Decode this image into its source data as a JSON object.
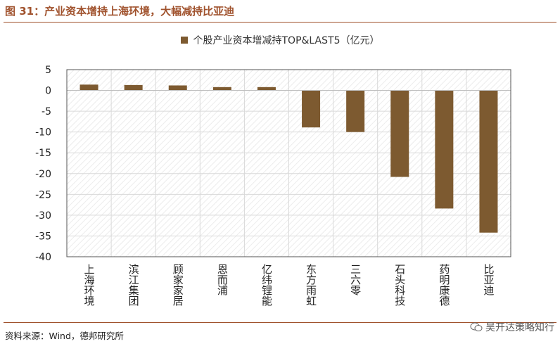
{
  "figure": {
    "title": "图 31：产业资本增持上海环境，大幅减持比亚迪",
    "source": "资料来源：Wind，德邦研究所",
    "watermark": "吴开达策略知行"
  },
  "colors": {
    "bar": "#7d5a30",
    "accent": "#a0522d",
    "grid": "#d9d9d9",
    "hatch": "#ececec"
  },
  "chart_data": {
    "type": "bar",
    "categories": [
      "上海环境",
      "滨江集团",
      "顾家家居",
      "恩而浦",
      "亿纬锂能",
      "东方雨虹",
      "三六零",
      "石头科技",
      "药明康德",
      "比亚迪"
    ],
    "series": [
      {
        "name": "个股产业资本增减持TOP&LAST5（亿元）",
        "values": [
          1.4,
          1.3,
          1.2,
          0.8,
          0.8,
          -8.9,
          -10.0,
          -20.8,
          -28.4,
          -34.2
        ]
      }
    ],
    "ylim": [
      -40,
      5
    ],
    "yticks": [
      5,
      0,
      -5,
      -10,
      -15,
      -20,
      -25,
      -30,
      -35,
      -40
    ],
    "xlabel": "",
    "ylabel": "",
    "grid": true,
    "legend": "top-center"
  }
}
